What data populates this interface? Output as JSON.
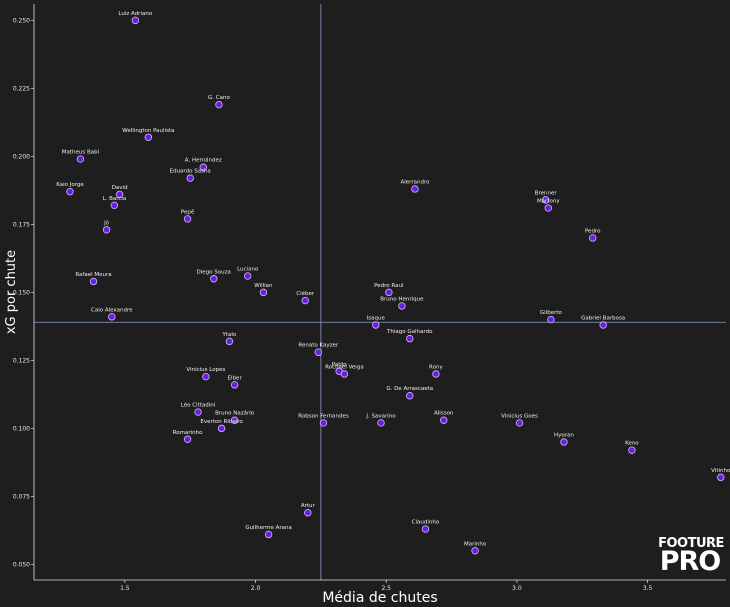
{
  "chart_data": {
    "type": "scatter",
    "xlabel": "Média de chutes",
    "ylabel": "xG por chute",
    "xlim": [
      1.16,
      3.8
    ],
    "ylim": [
      0.045,
      0.256
    ],
    "xticks": [
      "1.5",
      "2.0",
      "2.5",
      "3.0",
      "3.5"
    ],
    "yticks": [
      "0.050",
      "0.075",
      "0.100",
      "0.125",
      "0.150",
      "0.175",
      "0.200",
      "0.225",
      "0.250"
    ],
    "ref_lines": {
      "x": 2.25,
      "y": 0.139
    },
    "grid": false,
    "point_color": "#6a1fe0",
    "background": "#1e1e1e",
    "points": [
      {
        "name": "Luiz Adriano",
        "x": 1.54,
        "y": 0.25
      },
      {
        "name": "G. Cano",
        "x": 1.86,
        "y": 0.219
      },
      {
        "name": "Wellington Paulista",
        "x": 1.59,
        "y": 0.207
      },
      {
        "name": "Matheus Babi",
        "x": 1.33,
        "y": 0.199
      },
      {
        "name": "A. Hernández",
        "x": 1.8,
        "y": 0.196
      },
      {
        "name": "Eduardo Sasha",
        "x": 1.75,
        "y": 0.192
      },
      {
        "name": "Kaio Jorge",
        "x": 1.29,
        "y": 0.187
      },
      {
        "name": "David",
        "x": 1.48,
        "y": 0.186
      },
      {
        "name": "L. Barcia",
        "x": 1.46,
        "y": 0.182
      },
      {
        "name": "Pepê",
        "x": 1.74,
        "y": 0.177
      },
      {
        "name": "Jô",
        "x": 1.43,
        "y": 0.173
      },
      {
        "name": "Alerrandro",
        "x": 2.61,
        "y": 0.188
      },
      {
        "name": "Brenner",
        "x": 3.11,
        "y": 0.184
      },
      {
        "name": "Martony",
        "x": 3.12,
        "y": 0.181
      },
      {
        "name": "Pedro",
        "x": 3.29,
        "y": 0.17
      },
      {
        "name": "Rafael Moura",
        "x": 1.38,
        "y": 0.154
      },
      {
        "name": "Diego Souza",
        "x": 1.84,
        "y": 0.155
      },
      {
        "name": "Luciano",
        "x": 1.97,
        "y": 0.156
      },
      {
        "name": "Willian",
        "x": 2.03,
        "y": 0.15
      },
      {
        "name": "Cléber",
        "x": 2.19,
        "y": 0.147
      },
      {
        "name": "Pedro Raul",
        "x": 2.51,
        "y": 0.15
      },
      {
        "name": "Bruno Henrique",
        "x": 2.56,
        "y": 0.145
      },
      {
        "name": "Caio Alexandre",
        "x": 1.45,
        "y": 0.141
      },
      {
        "name": "Isaque",
        "x": 2.46,
        "y": 0.138
      },
      {
        "name": "Gilberto",
        "x": 3.13,
        "y": 0.14
      },
      {
        "name": "Gabriel Barbosa",
        "x": 3.33,
        "y": 0.138
      },
      {
        "name": "Thiago Galhardo",
        "x": 2.59,
        "y": 0.133
      },
      {
        "name": "Ytalo",
        "x": 1.9,
        "y": 0.132
      },
      {
        "name": "Renato Kayzer",
        "x": 2.24,
        "y": 0.128
      },
      {
        "name": "Pablo",
        "x": 2.32,
        "y": 0.121
      },
      {
        "name": "Rochael Veiga",
        "x": 2.34,
        "y": 0.12
      },
      {
        "name": "Rony",
        "x": 2.69,
        "y": 0.12
      },
      {
        "name": "Vinicius Lopes",
        "x": 1.81,
        "y": 0.119
      },
      {
        "name": "Elber",
        "x": 1.92,
        "y": 0.116
      },
      {
        "name": "G. De Arrascaeta",
        "x": 2.59,
        "y": 0.112
      },
      {
        "name": "Léo Cittadini",
        "x": 1.78,
        "y": 0.106
      },
      {
        "name": "Bruno Nazário",
        "x": 1.92,
        "y": 0.103
      },
      {
        "name": "Everton Ribeiro",
        "x": 1.87,
        "y": 0.1
      },
      {
        "name": "Romarinho",
        "x": 1.74,
        "y": 0.096
      },
      {
        "name": "Robson Fernandes",
        "x": 2.26,
        "y": 0.102
      },
      {
        "name": "J. Savarino",
        "x": 2.48,
        "y": 0.102
      },
      {
        "name": "Alisson",
        "x": 2.72,
        "y": 0.103
      },
      {
        "name": "Vinicius Goes",
        "x": 3.01,
        "y": 0.102
      },
      {
        "name": "Hyoran",
        "x": 3.18,
        "y": 0.095
      },
      {
        "name": "Keno",
        "x": 3.44,
        "y": 0.092
      },
      {
        "name": "Vitinho",
        "x": 3.78,
        "y": 0.082
      },
      {
        "name": "Artur",
        "x": 2.2,
        "y": 0.069
      },
      {
        "name": "Guilherme Arana",
        "x": 2.05,
        "y": 0.061
      },
      {
        "name": "Claudinho",
        "x": 2.65,
        "y": 0.063
      },
      {
        "name": "Marinho",
        "x": 2.84,
        "y": 0.055
      }
    ]
  },
  "logo": {
    "line1": "FOOTURE",
    "line2": "PRO"
  }
}
